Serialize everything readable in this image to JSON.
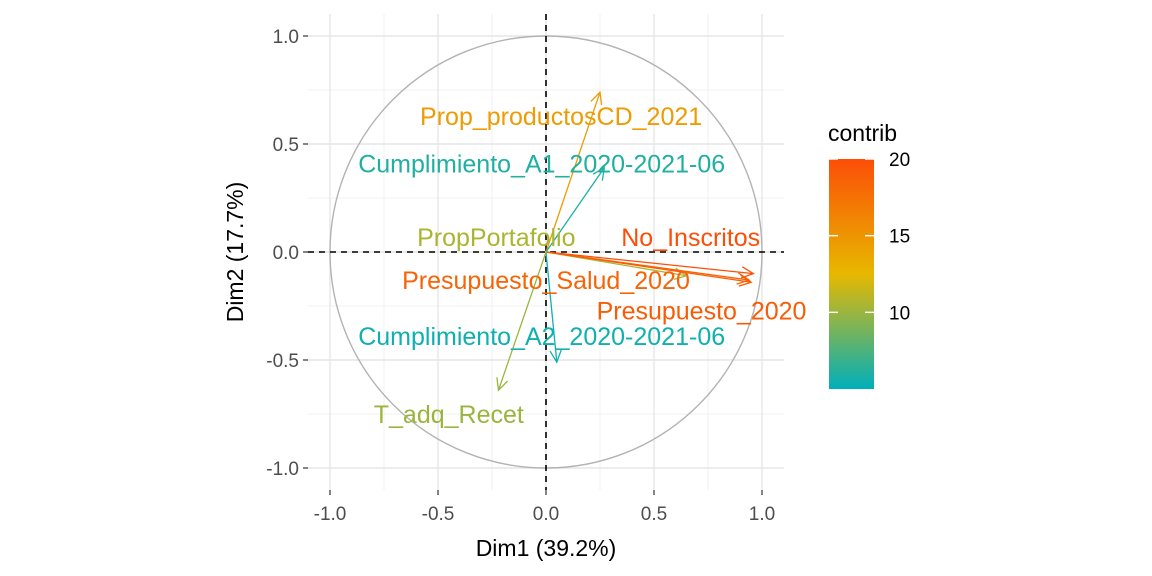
{
  "chart_data": {
    "type": "scatter",
    "subtype": "pca-variable-correlation-circle",
    "xlabel": "Dim1 (39.2%)",
    "ylabel": "Dim2 (17.7%)",
    "xlim": [
      -1.1,
      1.1
    ],
    "ylim": [
      -1.1,
      1.1
    ],
    "x_ticks": [
      -1.0,
      -0.5,
      0.0,
      0.5,
      1.0
    ],
    "y_ticks": [
      -1.0,
      -0.5,
      0.0,
      0.5,
      1.0
    ],
    "x_tick_labels": [
      "-1.0",
      "-0.5",
      "0.0",
      "0.5",
      "1.0"
    ],
    "y_tick_labels": [
      "-1.0",
      "-0.5",
      "0.0",
      "0.5",
      "1.0"
    ],
    "grid": true,
    "unit_circle": true,
    "reference_lines": {
      "x": 0,
      "y": 0,
      "style": "dashed"
    },
    "variables": [
      {
        "name": "Prop_productosCD_2021",
        "x": 0.25,
        "y": 0.74,
        "contrib": 14.5,
        "label_x": 0.07,
        "label_y": 0.63
      },
      {
        "name": "Cumplimiento_A1_2020-2021-06",
        "x": 0.27,
        "y": 0.39,
        "contrib": 6.0,
        "label_x": -0.02,
        "label_y": 0.41
      },
      {
        "name": "PropPortafolio",
        "x": 0.65,
        "y": -0.11,
        "contrib": 10.5,
        "label_x": -0.23,
        "label_y": 0.07
      },
      {
        "name": "No_Inscritos",
        "x": 0.96,
        "y": -0.1,
        "contrib": 20.0,
        "label_x": 0.67,
        "label_y": 0.07
      },
      {
        "name": "Presupuesto_Salud_2020",
        "x": 0.94,
        "y": -0.13,
        "contrib": 18.5,
        "label_x": 0.0,
        "label_y": -0.13
      },
      {
        "name": "Presupuesto_2020",
        "x": 0.95,
        "y": -0.14,
        "contrib": 19.0,
        "label_x": 0.72,
        "label_y": -0.27
      },
      {
        "name": "Cumplimiento_A2_2020-2021-06",
        "x": 0.05,
        "y": -0.51,
        "contrib": 5.5,
        "label_x": -0.02,
        "label_y": -0.39
      },
      {
        "name": "T_adq_Recet",
        "x": -0.22,
        "y": -0.64,
        "contrib": 10.0,
        "label_x": -0.45,
        "label_y": -0.75
      }
    ],
    "legend": {
      "title": "contrib",
      "position": "right",
      "range": [
        5,
        20
      ],
      "ticks": [
        10,
        15,
        20
      ],
      "tick_labels": [
        "10",
        "15",
        "20"
      ],
      "gradient": [
        "#00AFBB",
        "#E7B800",
        "#FC4E07"
      ]
    }
  }
}
